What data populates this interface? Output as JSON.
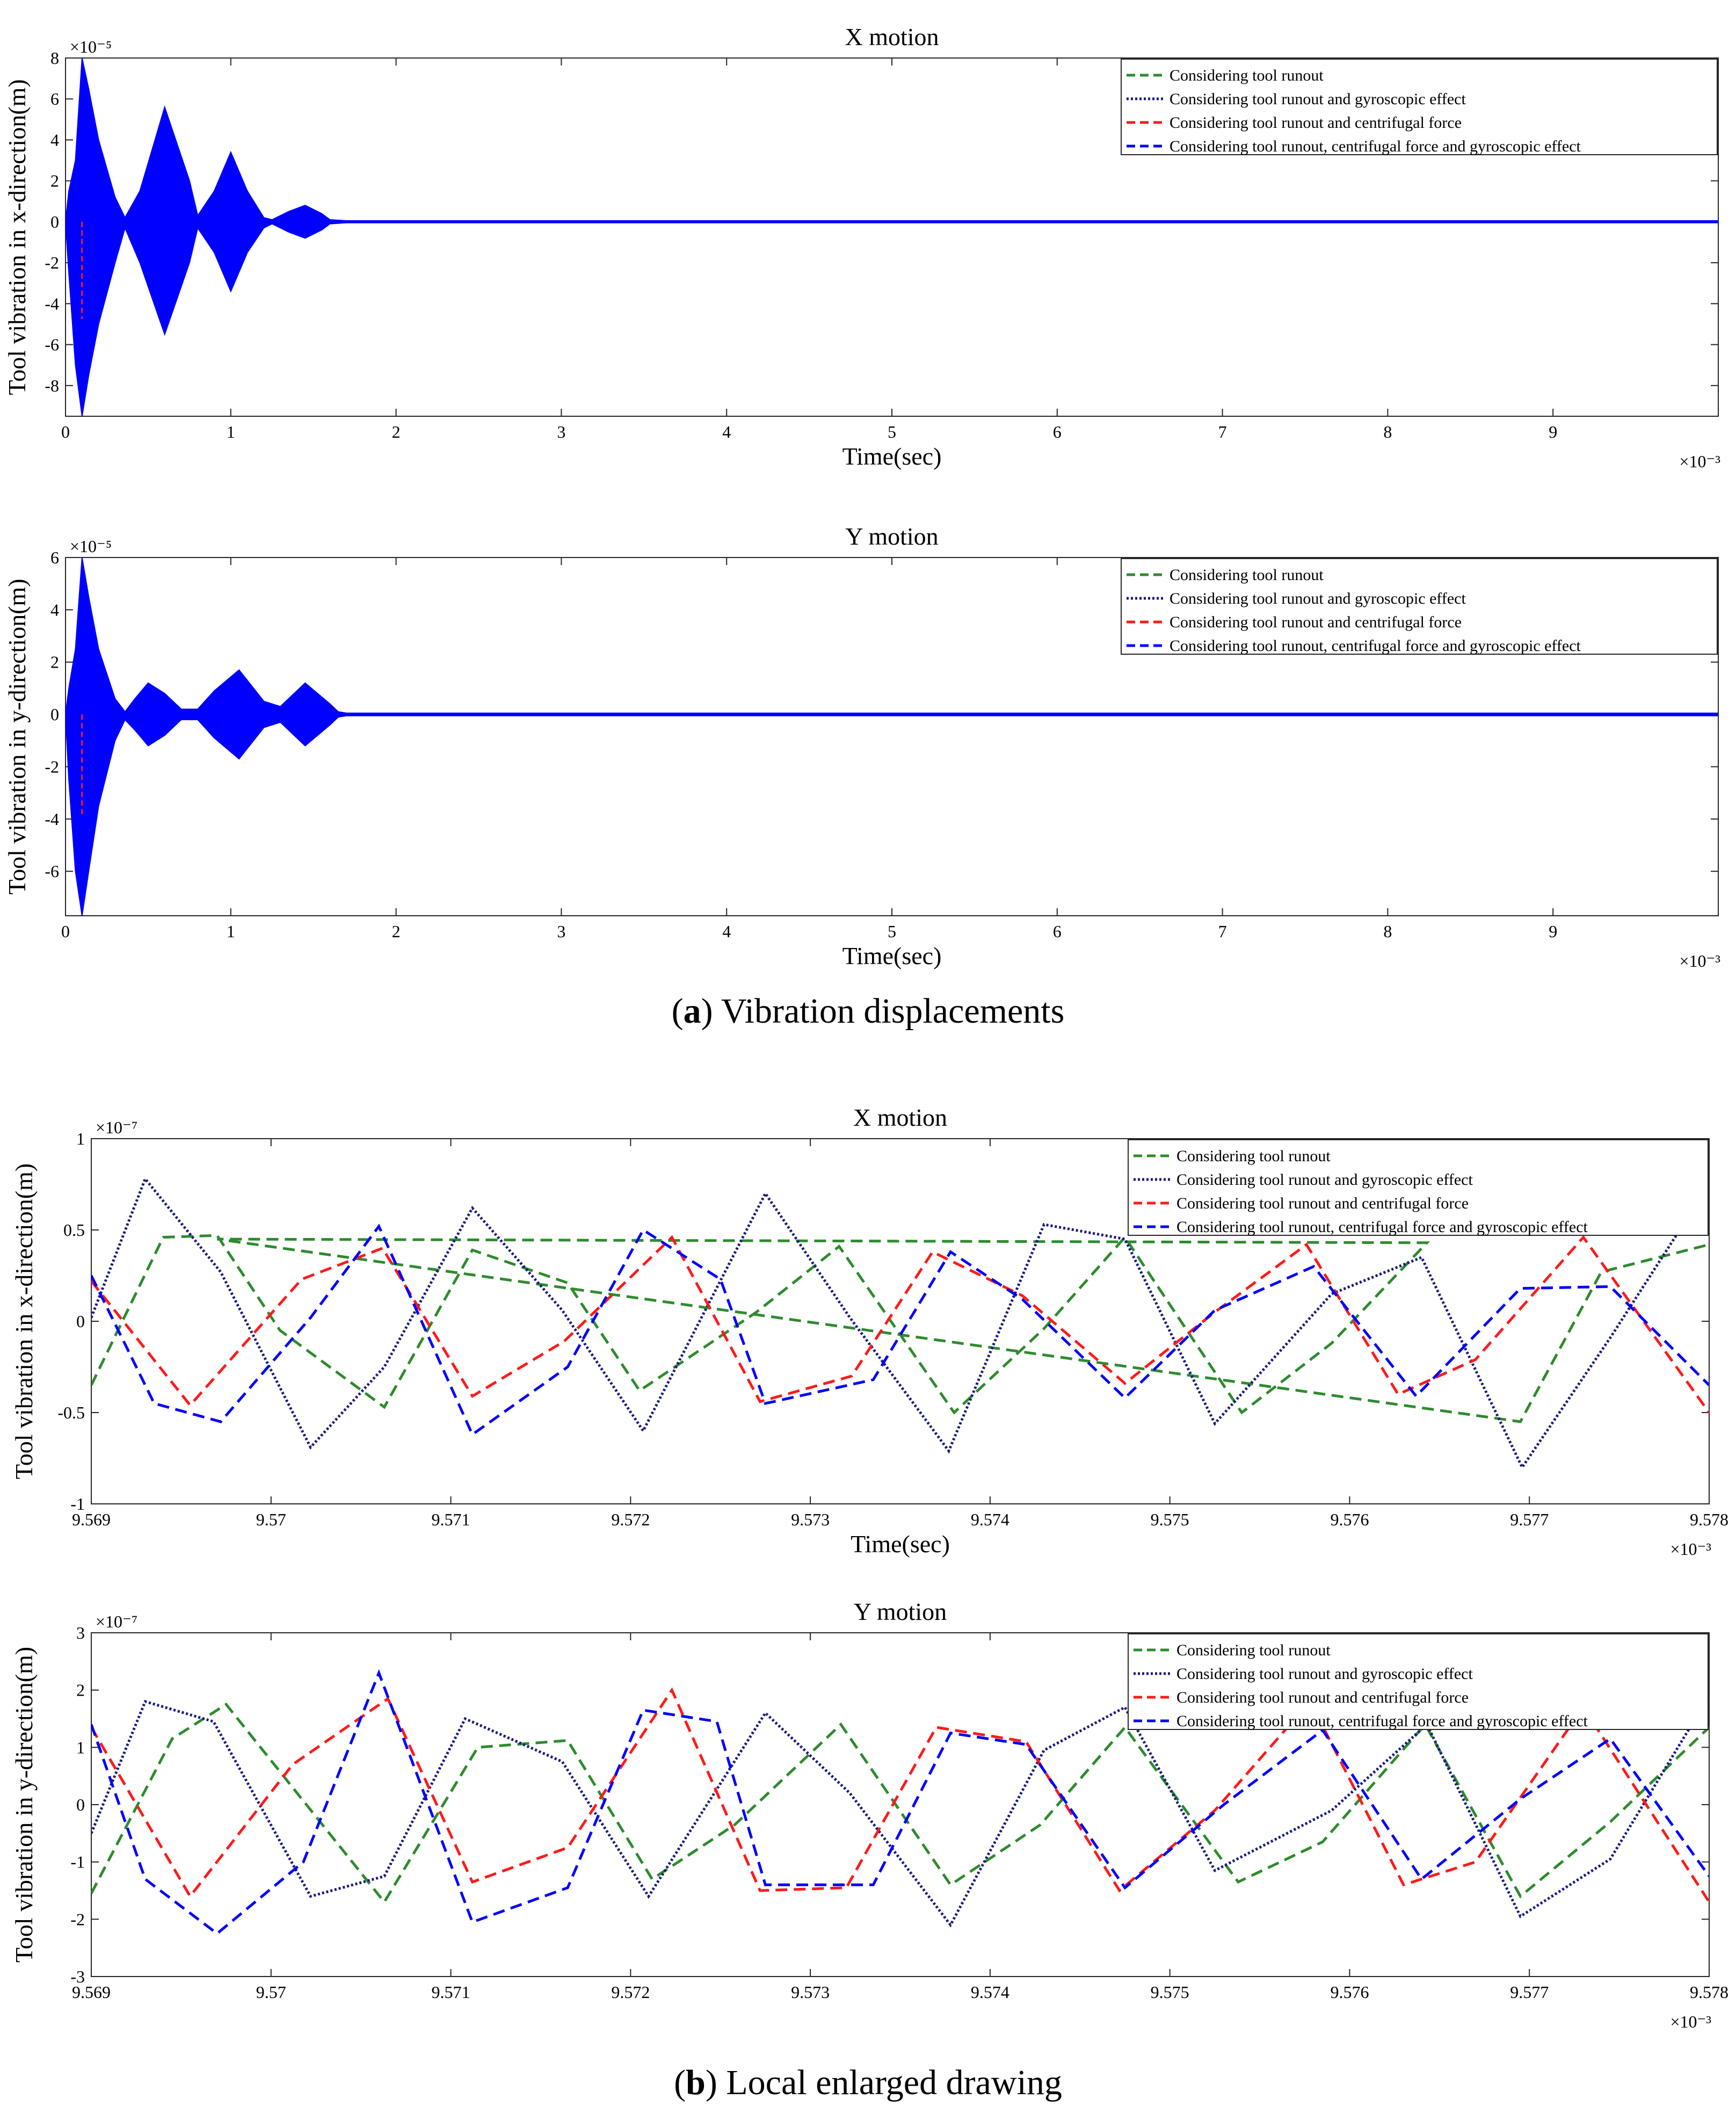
{
  "figure": {
    "caption_a": {
      "letter": "a",
      "text": "Vibration displacements"
    },
    "caption_b": {
      "letter": "b",
      "text": "Local enlarged drawing"
    }
  },
  "legend_labels": [
    "Considering tool runout",
    "Considering tool runout and gyroscopic effect",
    "Considering tool runout and centrifugal force",
    "Considering tool runout, centrifugal force and gyroscopic effect"
  ],
  "colors": {
    "green": "#2e8b2e",
    "navy": "#1a1a80",
    "red": "#ff1a1a",
    "blue": "#0000ff"
  },
  "chart_data": [
    {
      "id": "a-x",
      "type": "line",
      "title": "X motion",
      "xlabel": "Time(sec)",
      "ylabel": "Tool vibration in x-direction(m)",
      "x_multiplier": "×10⁻³",
      "y_multiplier": "×10⁻⁵",
      "xlim": [
        0,
        10
      ],
      "ylim": [
        -9.5,
        8
      ],
      "xticks": [
        0,
        1,
        2,
        3,
        4,
        5,
        6,
        7,
        8,
        9
      ],
      "yticks": [
        -8,
        -6,
        -4,
        -2,
        0,
        2,
        4,
        6,
        8
      ],
      "legend": "top-right",
      "envelope": {
        "t": [
          0,
          0.02,
          0.06,
          0.1,
          0.14,
          0.2,
          0.3,
          0.36,
          0.45,
          0.6,
          0.75,
          0.8,
          0.9,
          1.0,
          1.1,
          1.2,
          1.25,
          1.35,
          1.45,
          1.55,
          1.6,
          1.7,
          10
        ],
        "upper": [
          0,
          1.5,
          3.0,
          8.0,
          6.5,
          4.0,
          1.2,
          0.2,
          1.5,
          5.6,
          2.0,
          0.3,
          1.5,
          3.4,
          1.5,
          0.2,
          0.1,
          0.5,
          0.8,
          0.4,
          0.1,
          0.05,
          0.05
        ],
        "lower": [
          0,
          -2.5,
          -7.0,
          -9.5,
          -7.5,
          -5.0,
          -2.0,
          -0.3,
          -2.0,
          -5.5,
          -2.0,
          -0.3,
          -1.5,
          -3.4,
          -1.5,
          -0.3,
          -0.1,
          -0.5,
          -0.8,
          -0.4,
          -0.1,
          -0.05,
          -0.05
        ]
      },
      "series": [
        {
          "name": "Considering tool runout",
          "color": "green"
        },
        {
          "name": "Considering tool runout and gyroscopic effect",
          "color": "navy"
        },
        {
          "name": "Considering tool runout and centrifugal force",
          "color": "red"
        },
        {
          "name": "Considering tool runout, centrifugal force and gyroscopic effect",
          "color": "blue"
        }
      ]
    },
    {
      "id": "a-y",
      "type": "line",
      "title": "Y motion",
      "xlabel": "Time(sec)",
      "ylabel": "Tool vibration in y-direction(m)",
      "x_multiplier": "×10⁻³",
      "y_multiplier": "×10⁻⁵",
      "xlim": [
        0,
        10
      ],
      "ylim": [
        -7.7,
        6
      ],
      "xticks": [
        0,
        1,
        2,
        3,
        4,
        5,
        6,
        7,
        8,
        9
      ],
      "yticks": [
        -6,
        -4,
        -2,
        0,
        2,
        4,
        6
      ],
      "legend": "top-right",
      "envelope": {
        "t": [
          0,
          0.02,
          0.06,
          0.1,
          0.14,
          0.2,
          0.3,
          0.36,
          0.42,
          0.5,
          0.6,
          0.7,
          0.8,
          0.9,
          1.05,
          1.2,
          1.3,
          1.45,
          1.6,
          1.65,
          1.7,
          10
        ],
        "upper": [
          0,
          1.0,
          2.5,
          6.0,
          4.5,
          2.5,
          0.6,
          0.1,
          0.6,
          1.2,
          0.8,
          0.2,
          0.2,
          0.9,
          1.7,
          0.5,
          0.3,
          1.2,
          0.4,
          0.1,
          0.05,
          0.05
        ],
        "lower": [
          0,
          -2.5,
          -6.0,
          -7.7,
          -6.0,
          -3.5,
          -1.0,
          -0.2,
          -0.6,
          -1.2,
          -0.8,
          -0.2,
          -0.2,
          -0.9,
          -1.7,
          -0.5,
          -0.3,
          -1.2,
          -0.4,
          -0.1,
          -0.05,
          -0.05
        ]
      },
      "series": [
        {
          "name": "Considering tool runout",
          "color": "green"
        },
        {
          "name": "Considering tool runout and gyroscopic effect",
          "color": "navy"
        },
        {
          "name": "Considering tool runout and centrifugal force",
          "color": "red"
        },
        {
          "name": "Considering tool runout, centrifugal force and gyroscopic effect",
          "color": "blue"
        }
      ]
    },
    {
      "id": "b-x",
      "type": "line",
      "title": "X motion",
      "xlabel": "Time(sec)",
      "ylabel": "Tool vibration in x-direction(m)",
      "x_multiplier": "×10⁻³",
      "y_multiplier": "×10⁻⁷",
      "xlim": [
        9.569,
        9.578
      ],
      "ylim": [
        -1,
        1
      ],
      "xticks": [
        9.569,
        9.57,
        9.571,
        9.572,
        9.573,
        9.574,
        9.575,
        9.576,
        9.577,
        9.578
      ],
      "xtick_labels": [
        "9.569",
        "9.57",
        "9.571",
        "9.572",
        "9.573",
        "9.574",
        "9.575",
        "9.576",
        "9.577",
        "9.578"
      ],
      "yticks": [
        -1,
        -0.5,
        0,
        0.5,
        1
      ],
      "ytick_labels": [
        "-1",
        "-0.5",
        "0",
        "0.5",
        "1"
      ],
      "legend": "top-right",
      "series": [
        {
          "name": "Considering tool runout",
          "color": "green",
          "x": [
            9.569,
            9.5694,
            9.5697,
            9.57005,
            9.57063,
            9.57112,
            9.57165,
            9.57205,
            9.5727,
            9.57316,
            9.5738,
            9.5743,
            9.57475,
            9.5754,
            9.5759,
            9.57643,
            9.5697,
            9.57695,
            9.5774,
            9.578
          ],
          "y": [
            -0.35,
            0.46,
            0.47,
            -0.05,
            -0.47,
            0.39,
            0.21,
            -0.38,
            0.05,
            0.41,
            -0.5,
            -0.04,
            0.46,
            -0.5,
            -0.12,
            0.43,
            0.45,
            -0.55,
            0.27,
            0.42
          ]
        },
        {
          "name": "Considering tool runout and gyroscopic effect",
          "color": "navy",
          "x": [
            9.569,
            9.5693,
            9.56972,
            9.57022,
            9.57063,
            9.57112,
            9.57162,
            9.57207,
            9.57275,
            9.57322,
            9.57377,
            9.5743,
            9.57475,
            9.57525,
            9.5759,
            9.5764,
            9.57696,
            9.57745,
            9.578
          ],
          "y": [
            0.02,
            0.78,
            0.27,
            -0.69,
            -0.25,
            0.62,
            0.06,
            -0.6,
            0.7,
            0.02,
            -0.71,
            0.53,
            0.45,
            -0.56,
            0.15,
            0.35,
            -0.8,
            -0.09,
            0.75
          ]
        },
        {
          "name": "Considering tool runout and centrifugal force",
          "color": "red",
          "x": [
            9.569,
            9.56955,
            9.57017,
            9.57062,
            9.57112,
            9.57163,
            9.57223,
            9.57272,
            9.57323,
            9.57368,
            9.57418,
            9.57475,
            9.57525,
            9.57576,
            9.57627,
            9.5767,
            9.5773,
            9.578
          ],
          "y": [
            0.22,
            -0.46,
            0.23,
            0.4,
            -0.41,
            -0.11,
            0.46,
            -0.44,
            -0.3,
            0.38,
            0.14,
            -0.34,
            0.05,
            0.42,
            -0.4,
            -0.21,
            0.46,
            -0.5
          ]
        },
        {
          "name": "Considering tool runout, centrifugal force and gyroscopic effect",
          "color": "blue",
          "x": [
            9.569,
            9.56935,
            9.56972,
            9.57022,
            9.5706,
            9.57112,
            9.57165,
            9.57207,
            9.5725,
            9.57275,
            9.57335,
            9.57378,
            9.57418,
            9.57475,
            9.57525,
            9.5758,
            9.57637,
            9.57695,
            9.57745,
            9.578
          ],
          "y": [
            0.25,
            -0.45,
            -0.55,
            0.02,
            0.52,
            -0.62,
            -0.25,
            0.5,
            0.23,
            -0.45,
            -0.32,
            0.38,
            0.12,
            -0.42,
            0.06,
            0.3,
            -0.41,
            0.18,
            0.19,
            -0.35
          ]
        }
      ]
    },
    {
      "id": "b-y",
      "type": "line",
      "title": "Y motion",
      "xlabel": "",
      "ylabel": "Tool vibration in y-direction(m)",
      "x_multiplier": "×10⁻³",
      "y_multiplier": "×10⁻⁷",
      "xlim": [
        9.569,
        9.578
      ],
      "ylim": [
        -3,
        3
      ],
      "xticks": [
        9.569,
        9.57,
        9.571,
        9.572,
        9.573,
        9.574,
        9.575,
        9.576,
        9.577,
        9.578
      ],
      "xtick_labels": [
        "9.569",
        "9.57",
        "9.571",
        "9.572",
        "9.573",
        "9.574",
        "9.575",
        "9.576",
        "9.577",
        "9.578"
      ],
      "yticks": [
        -3,
        -2,
        -1,
        0,
        1,
        2,
        3
      ],
      "ytick_labels": [
        "-3",
        "-2",
        "-1",
        "0",
        "1",
        "2",
        "3"
      ],
      "legend": "top-right",
      "series": [
        {
          "name": "Considering tool runout",
          "color": "green",
          "x": [
            9.569,
            9.56945,
            9.56975,
            9.57063,
            9.57115,
            9.57165,
            9.57212,
            9.57258,
            9.57317,
            9.57378,
            9.57428,
            9.57475,
            9.57538,
            9.57585,
            9.57642,
            9.57695,
            9.57745,
            9.578
          ],
          "y": [
            -1.55,
            1.15,
            1.75,
            -1.7,
            1.0,
            1.12,
            -1.3,
            -0.35,
            1.4,
            -1.4,
            -0.35,
            1.35,
            -1.35,
            -0.65,
            1.4,
            -1.6,
            -0.3,
            1.35
          ]
        },
        {
          "name": "Considering tool runout and gyroscopic effect",
          "color": "navy",
          "x": [
            9.569,
            9.5693,
            9.56968,
            9.57022,
            9.57063,
            9.57108,
            9.57162,
            9.5721,
            9.57275,
            9.57322,
            9.57378,
            9.5743,
            9.57475,
            9.57525,
            9.5759,
            9.57643,
            9.57695,
            9.57745,
            9.578
          ],
          "y": [
            -0.5,
            1.8,
            1.45,
            -1.6,
            -1.25,
            1.5,
            0.75,
            -1.6,
            1.6,
            0.2,
            -2.1,
            0.95,
            1.7,
            -1.15,
            -0.1,
            1.4,
            -1.95,
            -0.95,
            1.9
          ]
        },
        {
          "name": "Considering tool runout and centrifugal force",
          "color": "red",
          "x": [
            9.569,
            9.56955,
            9.57012,
            9.57065,
            9.57112,
            9.57165,
            9.57223,
            9.57272,
            9.5732,
            9.5737,
            9.5742,
            9.57472,
            9.57525,
            9.57578,
            9.5763,
            9.5767,
            9.5773,
            9.578
          ],
          "y": [
            1.35,
            -1.6,
            0.7,
            1.85,
            -1.35,
            -0.75,
            2.0,
            -1.5,
            -1.45,
            1.35,
            1.1,
            -1.5,
            -0.1,
            1.8,
            -1.4,
            -1.0,
            1.7,
            -1.7
          ]
        },
        {
          "name": "Considering tool runout, centrifugal force and gyroscopic effect",
          "color": "blue",
          "x": [
            9.569,
            9.5693,
            9.5697,
            9.57018,
            9.5706,
            9.57112,
            9.57165,
            9.57207,
            9.57248,
            9.57275,
            9.57335,
            9.57378,
            9.5742,
            9.57475,
            9.5753,
            9.57585,
            9.5764,
            9.57695,
            9.57745,
            9.578
          ],
          "y": [
            1.4,
            -1.3,
            -2.25,
            -1.0,
            2.3,
            -2.05,
            -1.45,
            1.65,
            1.45,
            -1.4,
            -1.4,
            1.25,
            1.05,
            -1.45,
            0.0,
            1.3,
            -1.3,
            0.1,
            1.15,
            -1.25
          ]
        }
      ]
    }
  ]
}
